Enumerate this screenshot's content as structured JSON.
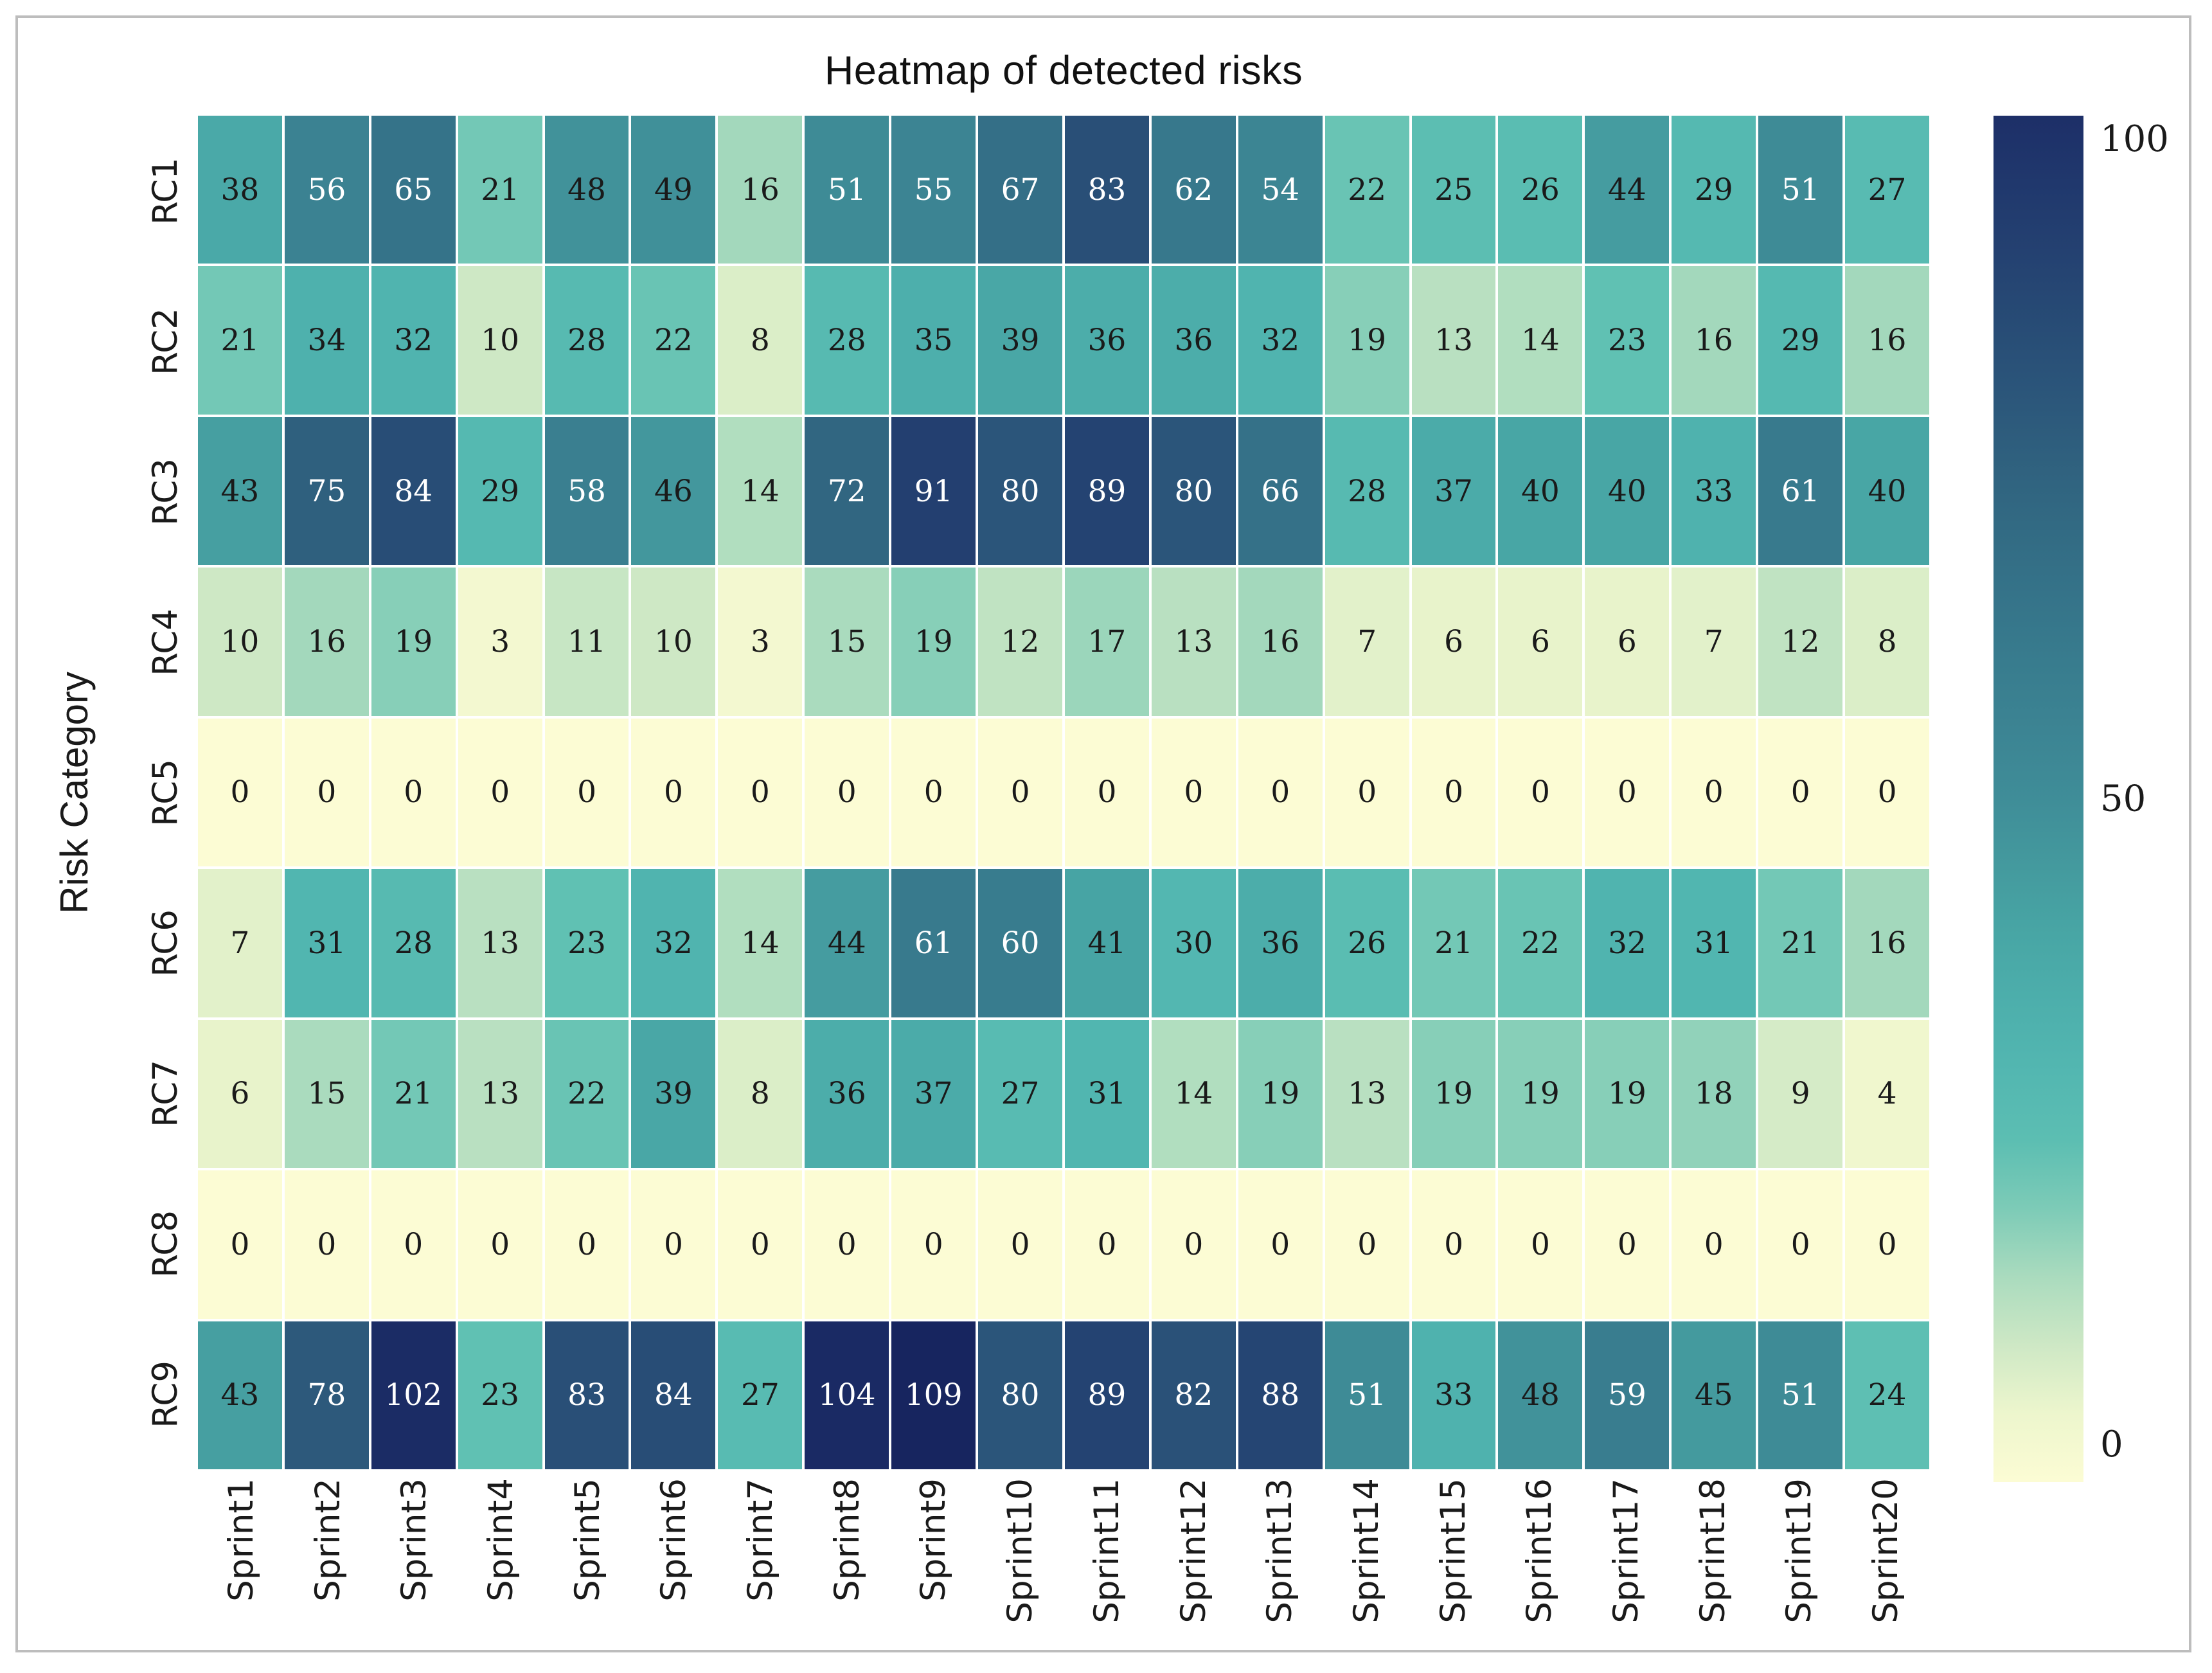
{
  "title": "Heatmap of detected risks",
  "ylabel": "Risk Category",
  "colorbar": {
    "ticks": [
      "100",
      "50",
      "0"
    ]
  },
  "chart_data": {
    "type": "heatmap",
    "title": "Heatmap of detected risks",
    "xlabel": "",
    "ylabel": "Risk Category",
    "x_categories": [
      "Sprint1",
      "Sprint2",
      "Sprint3",
      "Sprint4",
      "Sprint5",
      "Sprint6",
      "Sprint7",
      "Sprint8",
      "Sprint9",
      "Sprint10",
      "Sprint11",
      "Sprint12",
      "Sprint13",
      "Sprint14",
      "Sprint15",
      "Sprint16",
      "Sprint17",
      "Sprint18",
      "Sprint19",
      "Sprint20"
    ],
    "y_categories": [
      "RC1",
      "RC2",
      "RC3",
      "RC4",
      "RC5",
      "RC6",
      "RC7",
      "RC8",
      "RC9"
    ],
    "values": [
      [
        38,
        56,
        65,
        21,
        48,
        49,
        16,
        51,
        55,
        67,
        83,
        62,
        54,
        22,
        25,
        26,
        44,
        29,
        51,
        27
      ],
      [
        21,
        34,
        32,
        10,
        28,
        22,
        8,
        28,
        35,
        39,
        36,
        36,
        32,
        19,
        13,
        14,
        23,
        16,
        29,
        16
      ],
      [
        43,
        75,
        84,
        29,
        58,
        46,
        14,
        72,
        91,
        80,
        89,
        80,
        66,
        28,
        37,
        40,
        40,
        33,
        61,
        40
      ],
      [
        10,
        16,
        19,
        3,
        11,
        10,
        3,
        15,
        19,
        12,
        17,
        13,
        16,
        7,
        6,
        6,
        6,
        7,
        12,
        8
      ],
      [
        0,
        0,
        0,
        0,
        0,
        0,
        0,
        0,
        0,
        0,
        0,
        0,
        0,
        0,
        0,
        0,
        0,
        0,
        0,
        0
      ],
      [
        7,
        31,
        28,
        13,
        23,
        32,
        14,
        44,
        61,
        60,
        41,
        30,
        36,
        26,
        21,
        22,
        32,
        31,
        21,
        16
      ],
      [
        6,
        15,
        21,
        13,
        22,
        39,
        8,
        36,
        37,
        27,
        31,
        14,
        19,
        13,
        19,
        19,
        19,
        18,
        9,
        4
      ],
      [
        0,
        0,
        0,
        0,
        0,
        0,
        0,
        0,
        0,
        0,
        0,
        0,
        0,
        0,
        0,
        0,
        0,
        0,
        0,
        0
      ],
      [
        43,
        78,
        102,
        23,
        83,
        84,
        27,
        104,
        109,
        80,
        89,
        82,
        88,
        51,
        33,
        48,
        59,
        45,
        51,
        24
      ]
    ],
    "vmin": 0,
    "vmax": 109,
    "colorbar_range": [
      0,
      100
    ],
    "colorbar_ticks": [
      0,
      50,
      100
    ],
    "annotations": true,
    "annotation_text_switch": 50,
    "colormap": "YlGnBu-muted",
    "colormap_stops": [
      [
        0.0,
        "#fcfcd4"
      ],
      [
        0.05,
        "#ecf5cc"
      ],
      [
        0.1,
        "#c8e6c4"
      ],
      [
        0.155,
        "#9cd6bb"
      ],
      [
        0.21,
        "#60c1b3"
      ],
      [
        0.29,
        "#50b5b0"
      ],
      [
        0.38,
        "#47a3a3"
      ],
      [
        0.47,
        "#3e8a96"
      ],
      [
        0.57,
        "#37788c"
      ],
      [
        0.66,
        "#316681"
      ],
      [
        0.76,
        "#294f77"
      ],
      [
        0.86,
        "#213a6e"
      ],
      [
        0.94,
        "#1b2b65"
      ],
      [
        1.0,
        "#17255f"
      ]
    ],
    "cell_text_colors": {
      "low": "#1a1a1a",
      "high": "#ffffff"
    },
    "gridline_color": "#ffffff",
    "legend_position": "right-colorbar"
  }
}
